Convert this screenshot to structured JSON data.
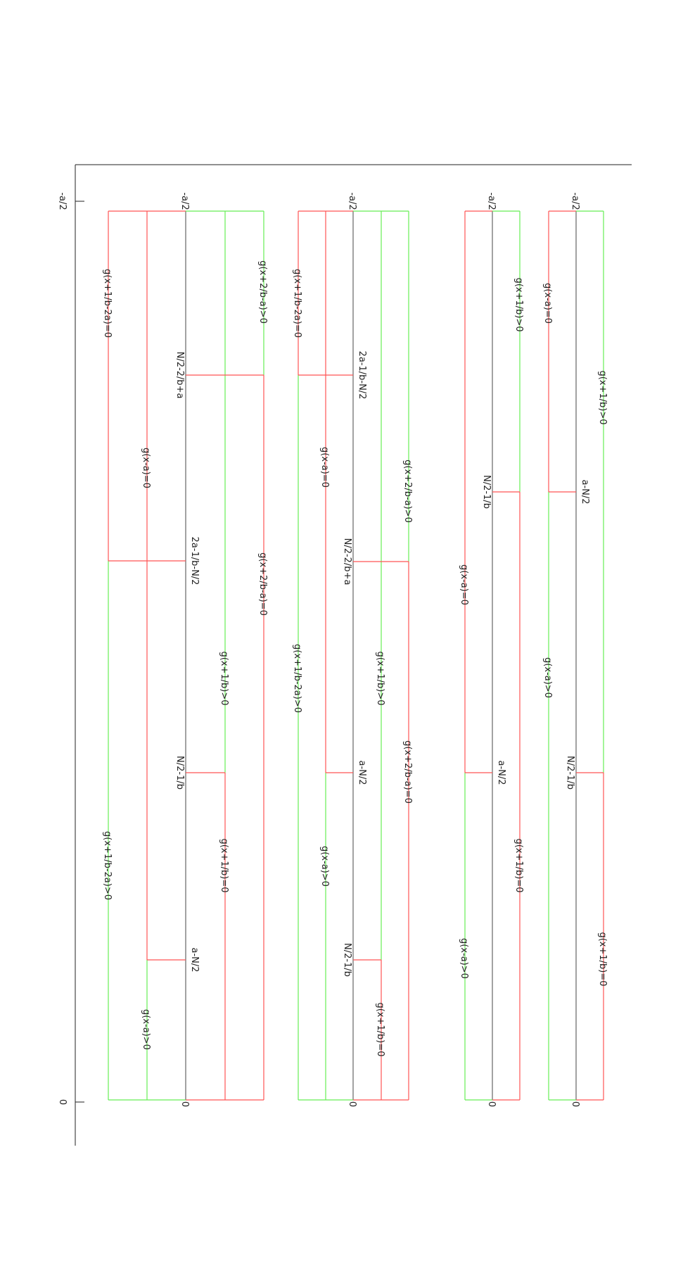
{
  "colors": {
    "red": "#ff5555",
    "green": "#66ee55",
    "dark": "#444444",
    "axis": "#222222"
  },
  "axis": {
    "top_label": "-a/2",
    "bottom_label": "0"
  },
  "labels": {
    "top": "-a/2",
    "zero": "0",
    "g_xa_eq": "g(x-a)=0",
    "g_xa_gt": "g(x-a)>0",
    "g_x1b_eq": "g(x+1/b)=0",
    "g_x1b_gt": "g(x+1/b)>0",
    "g_x2ba_eq": "g(x+2/b-a)=0",
    "g_x2ba_gt": "g(x+2/b-a)>0",
    "g_x1b2a_eq": "g(x+1/b-2a)=0",
    "g_x1b2a_gt": "g(x+1/b-2a)>0",
    "aN2": "a-N/2",
    "N21b": "N/2-1/b",
    "N22ba": "N/2-2/b+a",
    "a21bN2": "2a-1/b-N/2"
  }
}
